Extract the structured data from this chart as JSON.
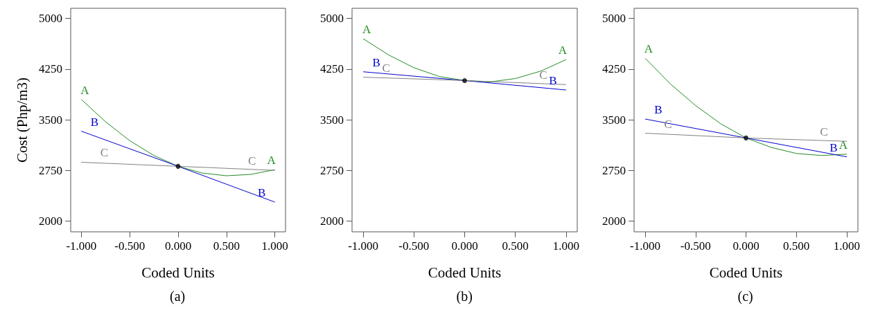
{
  "chart_data": [
    {
      "type": "line",
      "xlabel": "Coded Units",
      "ylabel": "Cost (Php/m3)",
      "annotations": [
        "(a)"
      ],
      "marker": "none",
      "xlim": [
        -1.11,
        1.11
      ],
      "ylim": [
        1840,
        5150
      ],
      "xticks": [
        {
          "value": -1,
          "label": "-1.000"
        },
        {
          "value": -0.5,
          "label": "-0.500"
        },
        {
          "value": 0,
          "label": "0.000"
        },
        {
          "value": 0.5,
          "label": "0.500"
        },
        {
          "value": 1,
          "label": "1.000"
        }
      ],
      "yticks": [
        2000,
        2750,
        3500,
        4250,
        5000
      ],
      "series": [
        {
          "name": "A",
          "color": "#228b22",
          "x": [
            -1,
            -0.75,
            -0.5,
            -0.25,
            0,
            0.25,
            0.5,
            0.75,
            1
          ],
          "values": [
            3800,
            3470,
            3190,
            2970,
            2810,
            2710,
            2670,
            2690,
            2760
          ]
        },
        {
          "name": "B",
          "color": "#0000cc",
          "x": [
            -1,
            0,
            1
          ],
          "values": [
            3330,
            2810,
            2280
          ]
        },
        {
          "name": "C",
          "color": "#808080",
          "x": [
            -1,
            0,
            1
          ],
          "values": [
            2870,
            2810,
            2750
          ]
        },
        {
          "type": "scatter",
          "marker": "circle",
          "color": "#000000",
          "x": [
            0
          ],
          "values": [
            2810
          ]
        }
      ]
    },
    {
      "type": "line",
      "xlabel": "Coded Units",
      "annotations": [
        "(b)"
      ],
      "marker": "none",
      "xlim": [
        -1.11,
        1.11
      ],
      "ylim": [
        1840,
        5150
      ],
      "xticks": [
        {
          "value": -1,
          "label": "-1.000"
        },
        {
          "value": -0.5,
          "label": "-0.500"
        },
        {
          "value": 0,
          "label": "0.000"
        },
        {
          "value": 0.5,
          "label": "0.500"
        },
        {
          "value": 1,
          "label": "1.000"
        }
      ],
      "yticks": [
        2000,
        2750,
        3500,
        4250,
        5000
      ],
      "series": [
        {
          "name": "A",
          "color": "#228b22",
          "x": [
            -1,
            -0.75,
            -0.5,
            -0.25,
            0,
            0.25,
            0.5,
            0.75,
            1
          ],
          "values": [
            4700,
            4460,
            4270,
            4140,
            4080,
            4060,
            4110,
            4220,
            4390
          ]
        },
        {
          "name": "B",
          "color": "#0000cc",
          "x": [
            -1,
            0,
            1
          ],
          "values": [
            4210,
            4080,
            3940
          ]
        },
        {
          "name": "C",
          "color": "#808080",
          "x": [
            -1,
            0,
            1
          ],
          "values": [
            4130,
            4080,
            4020
          ]
        },
        {
          "type": "scatter",
          "marker": "circle",
          "color": "#000000",
          "x": [
            0
          ],
          "values": [
            4080
          ]
        }
      ]
    },
    {
      "type": "line",
      "xlabel": "Coded Units",
      "annotations": [
        "(c)"
      ],
      "marker": "none",
      "xlim": [
        -1.11,
        1.11
      ],
      "ylim": [
        1840,
        5150
      ],
      "xticks": [
        {
          "value": -1,
          "label": "-1.000"
        },
        {
          "value": -0.5,
          "label": "-0.500"
        },
        {
          "value": 0,
          "label": "0.000"
        },
        {
          "value": 0.5,
          "label": "0.500"
        },
        {
          "value": 1,
          "label": "1.000"
        }
      ],
      "yticks": [
        2000,
        2750,
        3500,
        4250,
        5000
      ],
      "series": [
        {
          "name": "A",
          "color": "#228b22",
          "x": [
            -1,
            -0.75,
            -0.5,
            -0.25,
            0,
            0.25,
            0.5,
            0.75,
            1
          ],
          "values": [
            4410,
            4030,
            3710,
            3440,
            3230,
            3090,
            3000,
            2970,
            2990
          ]
        },
        {
          "name": "B",
          "color": "#0000cc",
          "x": [
            -1,
            0,
            1
          ],
          "values": [
            3510,
            3230,
            2950
          ]
        },
        {
          "name": "C",
          "color": "#808080",
          "x": [
            -1,
            0,
            1
          ],
          "values": [
            3300,
            3230,
            3180
          ]
        },
        {
          "type": "scatter",
          "marker": "circle",
          "color": "#000000",
          "x": [
            0
          ],
          "values": [
            3230
          ]
        }
      ]
    }
  ]
}
